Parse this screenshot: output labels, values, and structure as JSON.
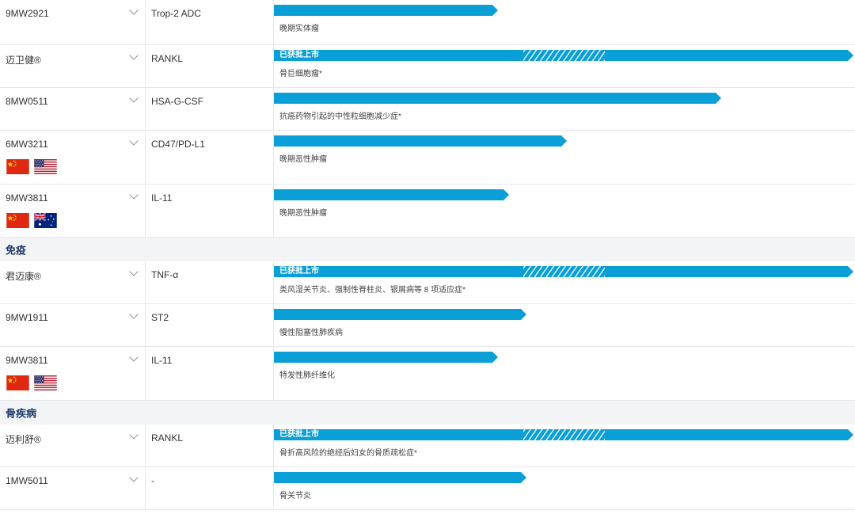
{
  "rows": [
    {
      "type": "drug",
      "name": "9MW2921",
      "target": "Trop-2 ADC",
      "indication": "晚期实体瘤",
      "progress": 0.38,
      "status": "",
      "flags": []
    },
    {
      "type": "drug",
      "name": "迈卫健®",
      "target": "RANKL",
      "indication": "骨巨细胞瘤*",
      "progress": 1.0,
      "status": "已获批上市",
      "flags": []
    },
    {
      "type": "drug",
      "name": "8MW0511",
      "target": "HSA-G-CSF",
      "indication": "抗癌药物引起的中性粒细胞减少症*",
      "progress": 0.77,
      "status": "",
      "flags": []
    },
    {
      "type": "drug",
      "name": "6MW3211",
      "target": "CD47/PD-L1",
      "indication": "晚期恶性肿瘤",
      "progress": 0.5,
      "status": "",
      "flags": [
        "china-flag-icon",
        "usa-flag-icon"
      ]
    },
    {
      "type": "drug",
      "name": "9MW3811",
      "target": "IL-11",
      "indication": "晚期恶性肿瘤",
      "progress": 0.4,
      "status": "",
      "flags": [
        "china-flag-icon",
        "australia-flag-icon"
      ]
    },
    {
      "type": "category",
      "label": "免疫"
    },
    {
      "type": "drug",
      "name": "君迈康®",
      "target": "TNF-α",
      "indication": "类风湿关节炎、强制性脊柱炎、银屑病等 8 项适应症*",
      "progress": 1.0,
      "status": "已获批上市",
      "flags": []
    },
    {
      "type": "drug",
      "name": "9MW1911",
      "target": "ST2",
      "indication": "慢性阻塞性肺疾病",
      "progress": 0.43,
      "status": "",
      "flags": []
    },
    {
      "type": "drug",
      "name": "9MW3811",
      "target": "IL-11",
      "indication": "特发性肺纤维化",
      "progress": 0.38,
      "status": "",
      "flags": [
        "china-flag-icon",
        "usa-flag-icon"
      ]
    },
    {
      "type": "category",
      "label": "骨疾病"
    },
    {
      "type": "drug",
      "name": "迈利舒®",
      "target": "RANKL",
      "indication": "骨折高风险的绝经后妇女的骨质疏松症*",
      "progress": 1.0,
      "status": "已获批上市",
      "flags": []
    },
    {
      "type": "drug",
      "name": "1MW5011",
      "target": "-",
      "indication": "骨关节炎",
      "progress": 0.43,
      "status": "",
      "flags": []
    }
  ],
  "colors": {
    "bar": "#0a9fd6",
    "category_bg": "#f3f4f6",
    "category_text": "#1d3a6b"
  }
}
